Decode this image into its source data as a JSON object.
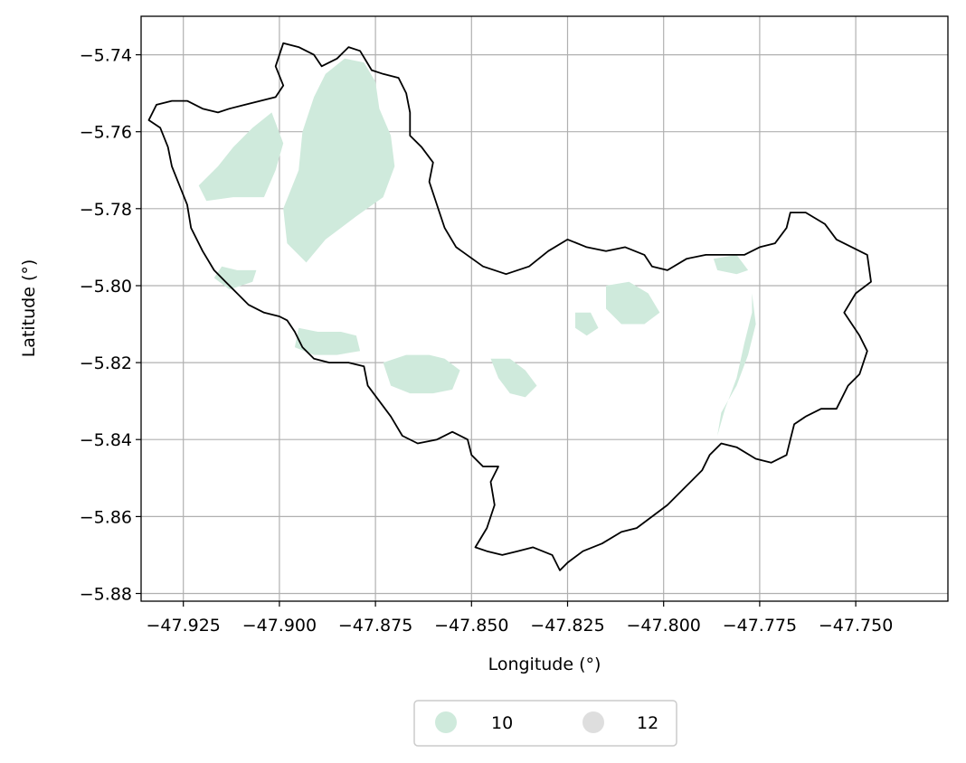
{
  "chart_data": {
    "type": "map",
    "xlabel": "Longitude (°)",
    "ylabel": "Latitude (°)",
    "xlim": [
      -47.936,
      -47.726
    ],
    "ylim": [
      -5.882,
      -5.73
    ],
    "grid": true,
    "x_ticks": [
      -47.925,
      -47.9,
      -47.875,
      -47.85,
      -47.825,
      -47.8,
      -47.775,
      -47.75
    ],
    "x_tick_labels": [
      "−47.925",
      "−47.900",
      "−47.875",
      "−47.850",
      "−47.825",
      "−47.800",
      "−47.775",
      "−47.750"
    ],
    "y_ticks": [
      -5.74,
      -5.76,
      -5.78,
      -5.8,
      -5.82,
      -5.84,
      -5.86,
      -5.88
    ],
    "y_tick_labels": [
      "−5.74",
      "−5.76",
      "−5.78",
      "−5.80",
      "−5.82",
      "−5.84",
      "−5.86",
      "−5.88"
    ],
    "legend_placement": "bottom-center",
    "legend": [
      {
        "label": "10",
        "color": "#cfeadc"
      },
      {
        "label": "12",
        "color": "#dedede"
      }
    ],
    "boundary_color": "#000000",
    "boundary": [
      [
        -47.901,
        -5.743
      ],
      [
        -47.899,
        -5.737
      ],
      [
        -47.895,
        -5.738
      ],
      [
        -47.891,
        -5.74
      ],
      [
        -47.889,
        -5.743
      ],
      [
        -47.885,
        -5.741
      ],
      [
        -47.882,
        -5.738
      ],
      [
        -47.879,
        -5.739
      ],
      [
        -47.876,
        -5.744
      ],
      [
        -47.873,
        -5.745
      ],
      [
        -47.869,
        -5.746
      ],
      [
        -47.867,
        -5.75
      ],
      [
        -47.866,
        -5.755
      ],
      [
        -47.866,
        -5.761
      ],
      [
        -47.863,
        -5.764
      ],
      [
        -47.86,
        -5.768
      ],
      [
        -47.861,
        -5.773
      ],
      [
        -47.859,
        -5.779
      ],
      [
        -47.857,
        -5.785
      ],
      [
        -47.854,
        -5.79
      ],
      [
        -47.847,
        -5.795
      ],
      [
        -47.841,
        -5.797
      ],
      [
        -47.835,
        -5.795
      ],
      [
        -47.83,
        -5.791
      ],
      [
        -47.825,
        -5.788
      ],
      [
        -47.82,
        -5.79
      ],
      [
        -47.815,
        -5.791
      ],
      [
        -47.81,
        -5.79
      ],
      [
        -47.805,
        -5.792
      ],
      [
        -47.803,
        -5.795
      ],
      [
        -47.799,
        -5.796
      ],
      [
        -47.794,
        -5.793
      ],
      [
        -47.789,
        -5.792
      ],
      [
        -47.784,
        -5.792
      ],
      [
        -47.779,
        -5.792
      ],
      [
        -47.775,
        -5.79
      ],
      [
        -47.771,
        -5.789
      ],
      [
        -47.768,
        -5.785
      ],
      [
        -47.767,
        -5.781
      ],
      [
        -47.763,
        -5.781
      ],
      [
        -47.758,
        -5.784
      ],
      [
        -47.755,
        -5.788
      ],
      [
        -47.751,
        -5.79
      ],
      [
        -47.747,
        -5.792
      ],
      [
        -47.746,
        -5.799
      ],
      [
        -47.75,
        -5.802
      ],
      [
        -47.753,
        -5.807
      ],
      [
        -47.751,
        -5.81
      ],
      [
        -47.749,
        -5.813
      ],
      [
        -47.747,
        -5.817
      ],
      [
        -47.749,
        -5.823
      ],
      [
        -47.752,
        -5.826
      ],
      [
        -47.755,
        -5.832
      ],
      [
        -47.759,
        -5.832
      ],
      [
        -47.763,
        -5.834
      ],
      [
        -47.766,
        -5.836
      ],
      [
        -47.767,
        -5.84
      ],
      [
        -47.768,
        -5.844
      ],
      [
        -47.772,
        -5.846
      ],
      [
        -47.776,
        -5.845
      ],
      [
        -47.781,
        -5.842
      ],
      [
        -47.785,
        -5.841
      ],
      [
        -47.788,
        -5.844
      ],
      [
        -47.79,
        -5.848
      ],
      [
        -47.794,
        -5.852
      ],
      [
        -47.799,
        -5.857
      ],
      [
        -47.803,
        -5.86
      ],
      [
        -47.807,
        -5.863
      ],
      [
        -47.811,
        -5.864
      ],
      [
        -47.816,
        -5.867
      ],
      [
        -47.821,
        -5.869
      ],
      [
        -47.825,
        -5.872
      ],
      [
        -47.827,
        -5.874
      ],
      [
        -47.829,
        -5.87
      ],
      [
        -47.834,
        -5.868
      ],
      [
        -47.838,
        -5.869
      ],
      [
        -47.842,
        -5.87
      ],
      [
        -47.846,
        -5.869
      ],
      [
        -47.849,
        -5.868
      ],
      [
        -47.846,
        -5.863
      ],
      [
        -47.844,
        -5.857
      ],
      [
        -47.845,
        -5.851
      ],
      [
        -47.843,
        -5.847
      ],
      [
        -47.847,
        -5.847
      ],
      [
        -47.85,
        -5.844
      ],
      [
        -47.851,
        -5.84
      ],
      [
        -47.855,
        -5.838
      ],
      [
        -47.859,
        -5.84
      ],
      [
        -47.864,
        -5.841
      ],
      [
        -47.868,
        -5.839
      ],
      [
        -47.871,
        -5.834
      ],
      [
        -47.874,
        -5.83
      ],
      [
        -47.877,
        -5.826
      ],
      [
        -47.878,
        -5.821
      ],
      [
        -47.882,
        -5.82
      ],
      [
        -47.887,
        -5.82
      ],
      [
        -47.891,
        -5.819
      ],
      [
        -47.894,
        -5.816
      ],
      [
        -47.896,
        -5.812
      ],
      [
        -47.898,
        -5.809
      ],
      [
        -47.9,
        -5.808
      ],
      [
        -47.904,
        -5.807
      ],
      [
        -47.908,
        -5.805
      ],
      [
        -47.911,
        -5.802
      ],
      [
        -47.914,
        -5.799
      ],
      [
        -47.917,
        -5.796
      ],
      [
        -47.92,
        -5.791
      ],
      [
        -47.923,
        -5.785
      ],
      [
        -47.924,
        -5.779
      ],
      [
        -47.926,
        -5.774
      ],
      [
        -47.928,
        -5.769
      ],
      [
        -47.929,
        -5.764
      ],
      [
        -47.931,
        -5.759
      ],
      [
        -47.934,
        -5.757
      ],
      [
        -47.932,
        -5.753
      ],
      [
        -47.928,
        -5.752
      ],
      [
        -47.924,
        -5.752
      ],
      [
        -47.92,
        -5.754
      ],
      [
        -47.916,
        -5.755
      ],
      [
        -47.913,
        -5.754
      ],
      [
        -47.909,
        -5.753
      ],
      [
        -47.905,
        -5.752
      ],
      [
        -47.901,
        -5.751
      ],
      [
        -47.899,
        -5.748
      ],
      [
        -47.901,
        -5.743
      ]
    ],
    "class_10_areas": [
      [
        [
          -47.883,
          -5.741
        ],
        [
          -47.878,
          -5.742
        ],
        [
          -47.875,
          -5.747
        ],
        [
          -47.874,
          -5.754
        ],
        [
          -47.871,
          -5.761
        ],
        [
          -47.87,
          -5.769
        ],
        [
          -47.873,
          -5.777
        ],
        [
          -47.88,
          -5.782
        ],
        [
          -47.888,
          -5.788
        ],
        [
          -47.893,
          -5.794
        ],
        [
          -47.898,
          -5.789
        ],
        [
          -47.899,
          -5.78
        ],
        [
          -47.895,
          -5.77
        ],
        [
          -47.894,
          -5.76
        ],
        [
          -47.891,
          -5.751
        ],
        [
          -47.888,
          -5.745
        ]
      ],
      [
        [
          -47.902,
          -5.755
        ],
        [
          -47.907,
          -5.759
        ],
        [
          -47.912,
          -5.764
        ],
        [
          -47.916,
          -5.769
        ],
        [
          -47.921,
          -5.774
        ],
        [
          -47.919,
          -5.778
        ],
        [
          -47.912,
          -5.777
        ],
        [
          -47.904,
          -5.777
        ],
        [
          -47.901,
          -5.77
        ],
        [
          -47.899,
          -5.763
        ]
      ],
      [
        [
          -47.915,
          -5.795
        ],
        [
          -47.911,
          -5.796
        ],
        [
          -47.906,
          -5.796
        ],
        [
          -47.907,
          -5.799
        ],
        [
          -47.913,
          -5.801
        ],
        [
          -47.917,
          -5.798
        ]
      ],
      [
        [
          -47.895,
          -5.811
        ],
        [
          -47.89,
          -5.812
        ],
        [
          -47.884,
          -5.812
        ],
        [
          -47.88,
          -5.813
        ],
        [
          -47.879,
          -5.817
        ],
        [
          -47.885,
          -5.818
        ],
        [
          -47.891,
          -5.818
        ],
        [
          -47.896,
          -5.816
        ]
      ],
      [
        [
          -47.873,
          -5.82
        ],
        [
          -47.867,
          -5.818
        ],
        [
          -47.861,
          -5.818
        ],
        [
          -47.857,
          -5.819
        ],
        [
          -47.853,
          -5.822
        ],
        [
          -47.855,
          -5.827
        ],
        [
          -47.86,
          -5.828
        ],
        [
          -47.866,
          -5.828
        ],
        [
          -47.871,
          -5.826
        ]
      ],
      [
        [
          -47.845,
          -5.819
        ],
        [
          -47.84,
          -5.819
        ],
        [
          -47.836,
          -5.822
        ],
        [
          -47.833,
          -5.826
        ],
        [
          -47.836,
          -5.829
        ],
        [
          -47.84,
          -5.828
        ],
        [
          -47.843,
          -5.824
        ]
      ],
      [
        [
          -47.815,
          -5.8
        ],
        [
          -47.809,
          -5.799
        ],
        [
          -47.804,
          -5.802
        ],
        [
          -47.801,
          -5.807
        ],
        [
          -47.805,
          -5.81
        ],
        [
          -47.811,
          -5.81
        ],
        [
          -47.815,
          -5.806
        ]
      ],
      [
        [
          -47.823,
          -5.807
        ],
        [
          -47.819,
          -5.807
        ],
        [
          -47.817,
          -5.811
        ],
        [
          -47.82,
          -5.813
        ],
        [
          -47.823,
          -5.811
        ]
      ],
      [
        [
          -47.787,
          -5.793
        ],
        [
          -47.781,
          -5.792
        ],
        [
          -47.778,
          -5.796
        ],
        [
          -47.781,
          -5.797
        ],
        [
          -47.786,
          -5.796
        ]
      ],
      [
        [
          -47.777,
          -5.802
        ],
        [
          -47.776,
          -5.81
        ],
        [
          -47.778,
          -5.818
        ],
        [
          -47.781,
          -5.826
        ],
        [
          -47.785,
          -5.833
        ],
        [
          -47.786,
          -5.839
        ],
        [
          -47.784,
          -5.832
        ],
        [
          -47.781,
          -5.824
        ],
        [
          -47.779,
          -5.815
        ],
        [
          -47.777,
          -5.807
        ]
      ]
    ]
  }
}
